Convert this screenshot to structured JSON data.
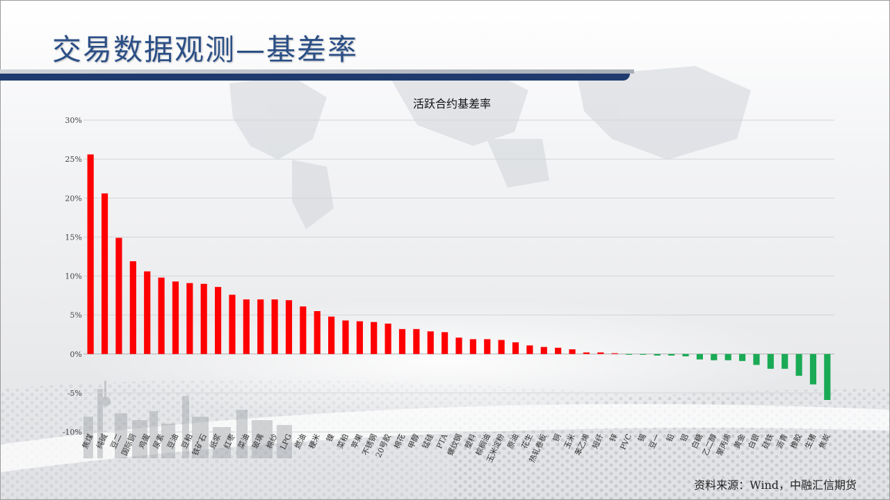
{
  "page": {
    "title": "交易数据观测—基差率",
    "source": "资料来源：Wind，中融汇信期货"
  },
  "colors": {
    "positive": "#ff0000",
    "negative": "#1aaa55",
    "title_text": "#2b4f86",
    "band": "#1f3a6e"
  },
  "chart_data": {
    "type": "bar",
    "title": "活跃合约基差率",
    "ylim": [
      -10,
      30
    ],
    "yticks": [
      30,
      25,
      20,
      15,
      10,
      5,
      0,
      -5,
      -10
    ],
    "ytick_labels": [
      "30%",
      "25%",
      "20%",
      "15%",
      "10%",
      "5%",
      "0%",
      "-5%",
      "-10%"
    ],
    "grid": true,
    "categories": [
      "焦煤",
      "纯碱",
      "豆二",
      "国际铜",
      "鸡蛋",
      "尿素",
      "豆油",
      "豆粕",
      "铁矿石",
      "纸浆",
      "红枣",
      "菜油",
      "玻璃",
      "棉纱",
      "LPG",
      "燃油",
      "粳米",
      "镍",
      "菜粕",
      "苹果",
      "不锈钢",
      "20号胶",
      "棉花",
      "甲醇",
      "锰硅",
      "PTA",
      "螺纹钢",
      "塑料",
      "棕榈油",
      "玉米淀粉",
      "原油",
      "花生",
      "热轧卷板",
      "铜",
      "玉米",
      "苯乙烯",
      "短纤",
      "锌",
      "PVC",
      "锡",
      "豆一",
      "铅",
      "铝",
      "白糖",
      "乙二醇",
      "聚丙烯",
      "黄金",
      "白银",
      "硅铁",
      "沥青",
      "橡胶",
      "生猪",
      "焦炭"
    ],
    "values": [
      25.6,
      20.6,
      14.9,
      11.9,
      10.6,
      9.8,
      9.3,
      9.1,
      9.0,
      8.6,
      7.6,
      7.0,
      7.0,
      7.0,
      6.9,
      6.1,
      5.5,
      4.8,
      4.3,
      4.2,
      4.1,
      3.9,
      3.2,
      3.2,
      2.9,
      2.8,
      2.1,
      1.9,
      1.9,
      1.8,
      1.5,
      1.1,
      0.9,
      0.8,
      0.6,
      0.2,
      0.2,
      0.1,
      -0.1,
      -0.1,
      -0.2,
      -0.2,
      -0.3,
      -0.7,
      -0.8,
      -0.8,
      -0.9,
      -1.4,
      -1.9,
      -1.9,
      -2.8,
      -3.9,
      -5.9
    ]
  }
}
